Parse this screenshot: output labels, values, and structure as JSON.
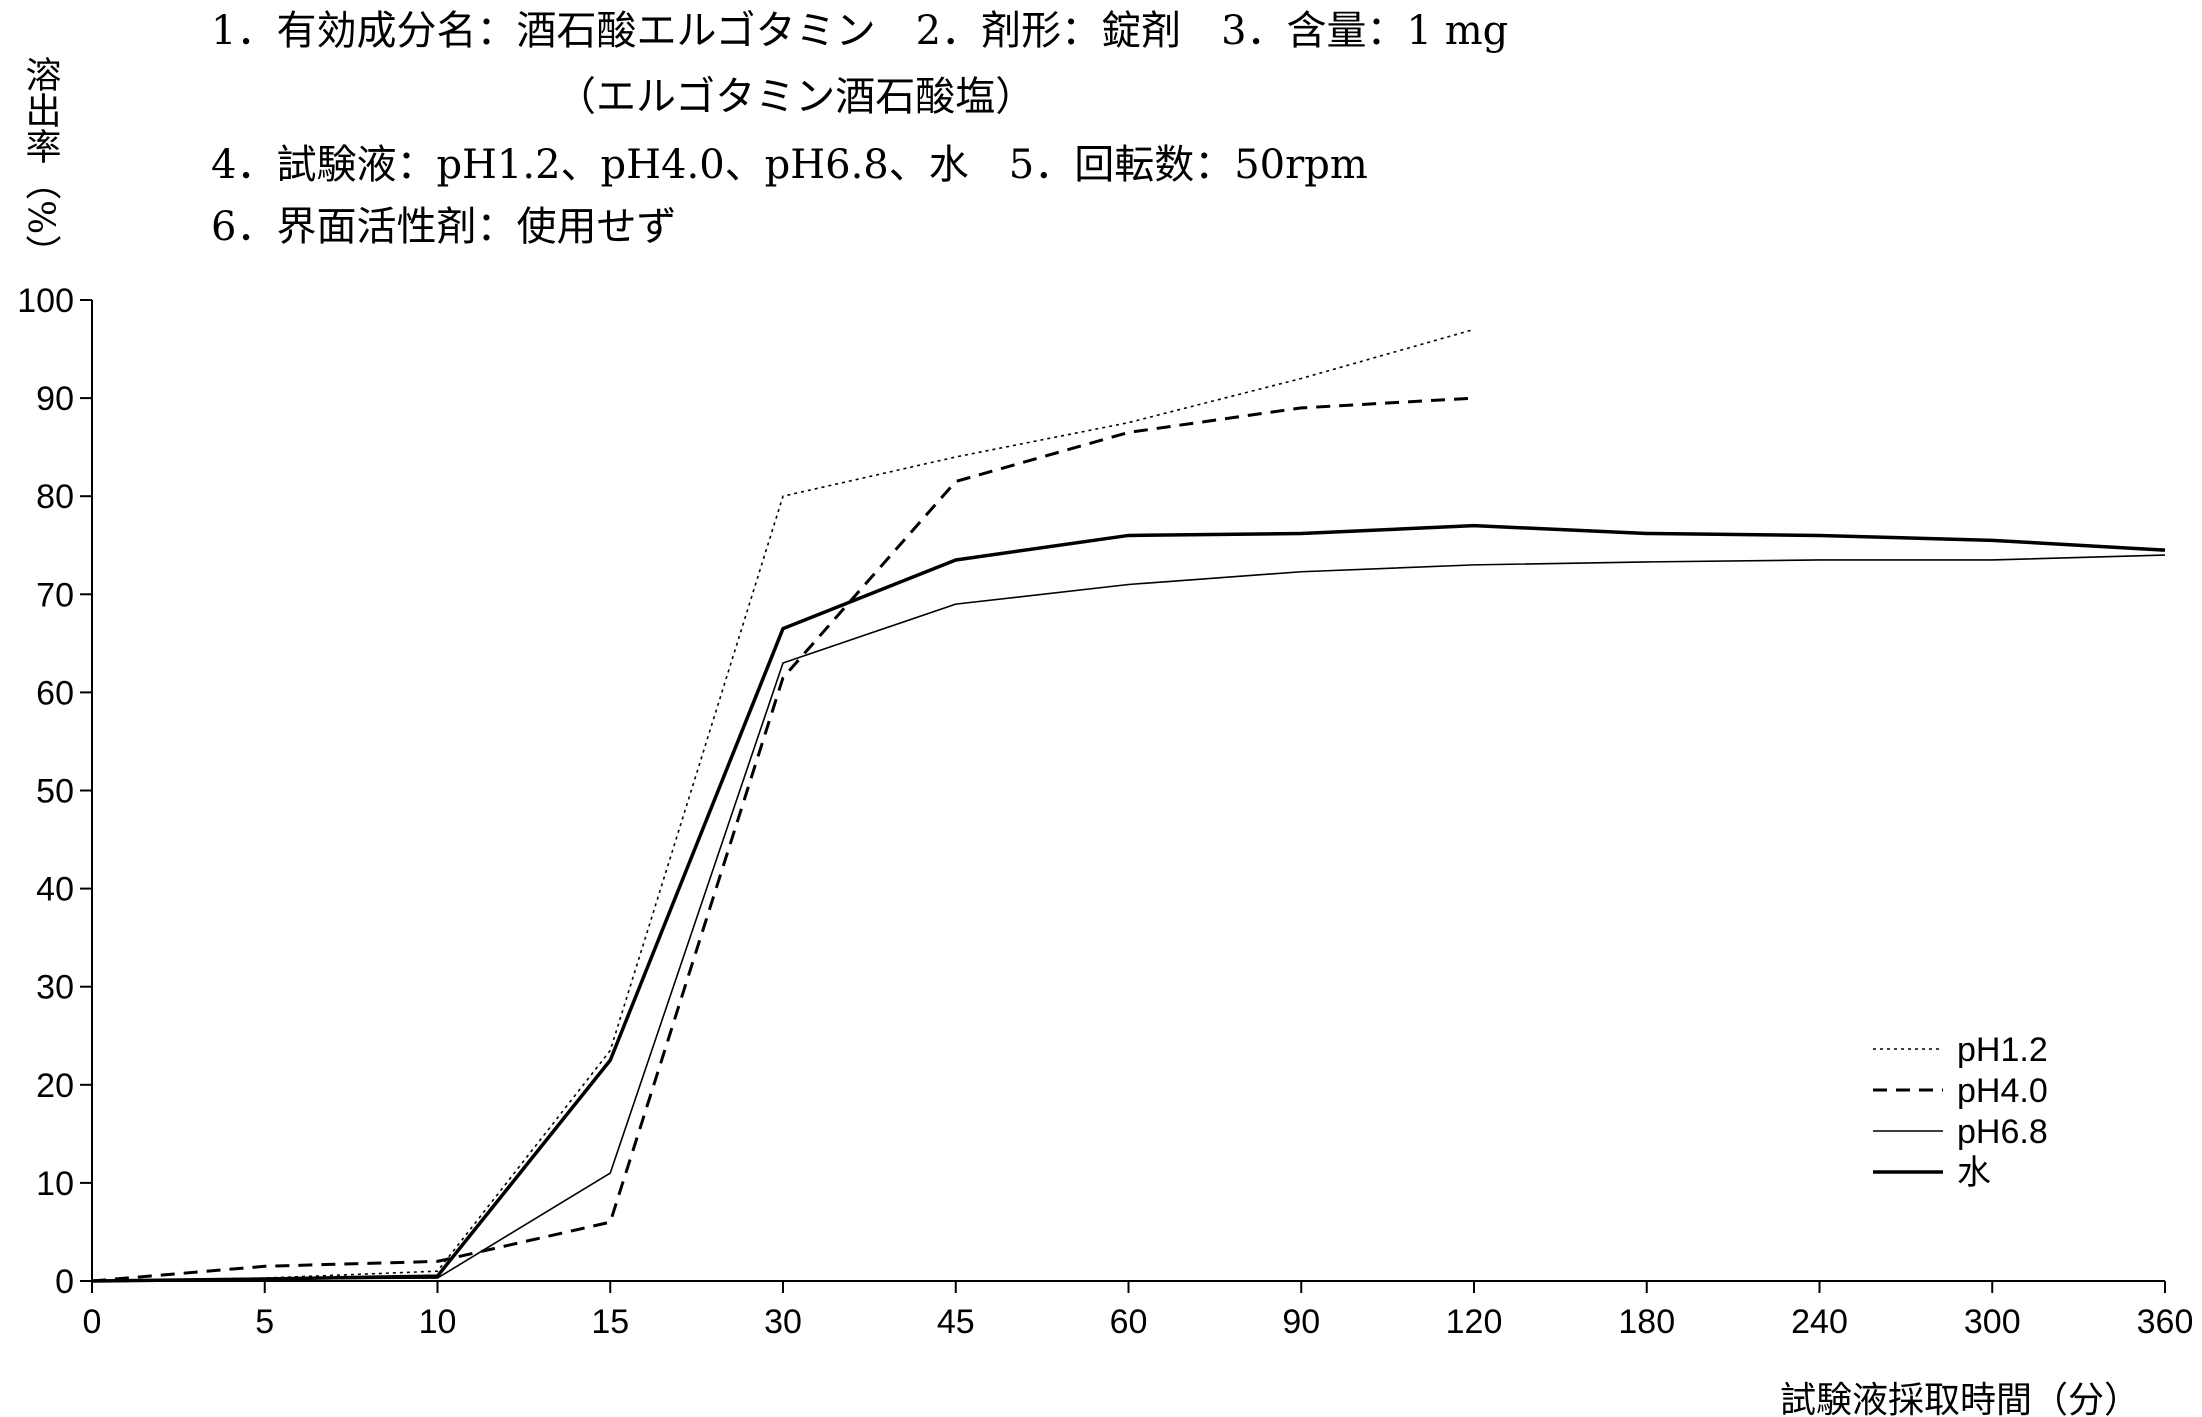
{
  "chart_data": {
    "type": "line",
    "notes": [
      "1．有効成分名：酒石酸エルゴタミン　2．剤形：錠剤　3．含量：1 mg",
      "（エルゴタミン酒石酸塩）",
      "4．試験液：pH1.2、pH4.0、pH6.8、水　5．回転数：50rpm",
      "6．界面活性剤：使用せず"
    ],
    "y_label": "溶出率（%）",
    "x_label": "試験液採取時間（分）",
    "categories": [
      "0",
      "5",
      "10",
      "15",
      "30",
      "45",
      "60",
      "90",
      "120",
      "180",
      "240",
      "300",
      "360"
    ],
    "series": [
      {
        "name": "pH1.2",
        "color": "#000000",
        "values": [
          0,
          0.3,
          1,
          23.5,
          80,
          84,
          87.5,
          92,
          97,
          null,
          null,
          null,
          null
        ]
      },
      {
        "name": "pH4.0",
        "color": "#000000",
        "values": [
          0,
          1.5,
          2,
          6,
          61.5,
          81.5,
          86.5,
          89,
          90,
          null,
          null,
          null,
          null
        ]
      },
      {
        "name": "pH6.8",
        "color": "#000000",
        "values": [
          0,
          0.2,
          0.3,
          11,
          63,
          69,
          71,
          72.3,
          73,
          73.3,
          73.5,
          73.5,
          74
        ]
      },
      {
        "name": "水",
        "color": "#000000",
        "values": [
          0,
          0.2,
          0.5,
          22.5,
          66.5,
          73.5,
          76,
          76.2,
          77,
          76.2,
          76,
          75.5,
          74.5
        ]
      }
    ],
    "ylim": [
      0,
      100
    ],
    "yticks": [
      0,
      10,
      20,
      30,
      40,
      50,
      60,
      70,
      80,
      90,
      100
    ],
    "legend": "lower right"
  }
}
